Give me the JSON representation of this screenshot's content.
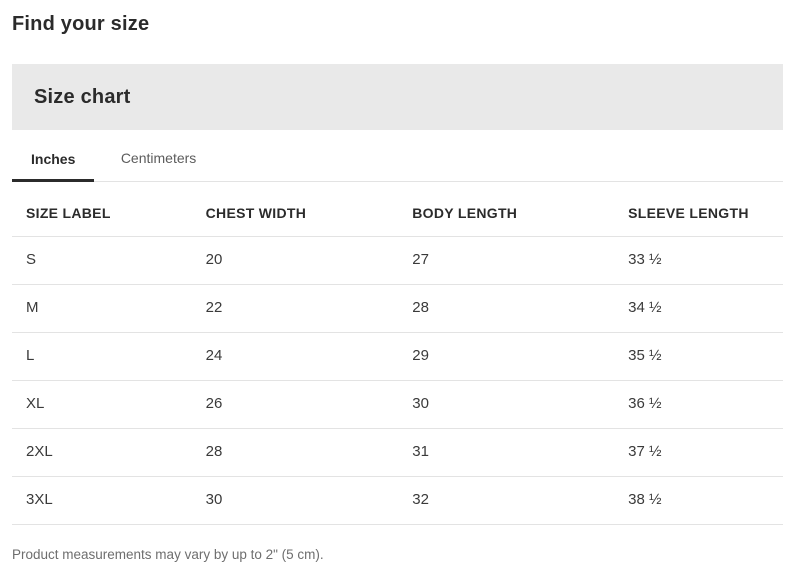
{
  "heading": "Find your size",
  "panel": {
    "title": "Size chart"
  },
  "tabs": [
    {
      "label": "Inches",
      "active": true
    },
    {
      "label": "Centimeters",
      "active": false
    }
  ],
  "table": {
    "columns": [
      "SIZE LABEL",
      "CHEST WIDTH",
      "BODY LENGTH",
      "SLEEVE LENGTH"
    ],
    "rows": [
      [
        "S",
        "20",
        "27",
        "33 ½"
      ],
      [
        "M",
        "22",
        "28",
        "34 ½"
      ],
      [
        "L",
        "24",
        "29",
        "35 ½"
      ],
      [
        "XL",
        "26",
        "30",
        "36 ½"
      ],
      [
        "2XL",
        "28",
        "31",
        "37 ½"
      ],
      [
        "3XL",
        "30",
        "32",
        "38 ½"
      ]
    ]
  },
  "footnote": "Product measurements may vary by up to 2\" (5 cm).",
  "colors": {
    "heading_text": "#2b2b2b",
    "panel_background": "#e9e9e9",
    "tab_active_text": "#2b2b2b",
    "tab_active_underline": "#2b2b2b",
    "tab_inactive_text": "#5c5c5c",
    "divider": "#e3e3e3",
    "cell_text": "#3a3a3a",
    "footnote_text": "#6e6e6e"
  }
}
